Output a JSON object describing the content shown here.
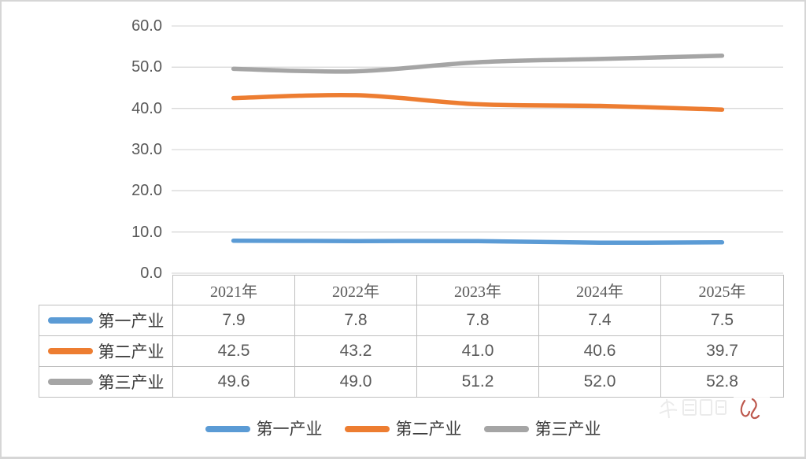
{
  "chart_data": {
    "type": "line",
    "title": "",
    "xlabel": "",
    "ylabel": "",
    "categories": [
      "2021年",
      "2022年",
      "2023年",
      "2024年",
      "2025年"
    ],
    "series": [
      {
        "name": "第一产业",
        "color": "#5B9BD5",
        "values": [
          7.9,
          7.8,
          7.8,
          7.4,
          7.5
        ]
      },
      {
        "name": "第二产业",
        "color": "#ED7D31",
        "values": [
          42.5,
          43.2,
          41.0,
          40.6,
          39.7
        ]
      },
      {
        "name": "第三产业",
        "color": "#A5A5A5",
        "values": [
          49.6,
          49.0,
          51.2,
          52.0,
          52.8
        ]
      }
    ],
    "ylim": [
      0,
      60
    ],
    "yticks": [
      "60.0",
      "50.0",
      "40.0",
      "30.0",
      "20.0",
      "10.0",
      "0.0"
    ],
    "grid": true,
    "gridline_color": "#D9D9D9",
    "smooth_lines": true,
    "legend_position": "bottom"
  },
  "table": {
    "columns": [
      "2021年",
      "2022年",
      "2023年",
      "2024年",
      "2025年"
    ],
    "rows": [
      {
        "label": "第一产业",
        "cells": [
          "7.9",
          "7.8",
          "7.8",
          "7.4",
          "7.5"
        ]
      },
      {
        "label": "第二产业",
        "cells": [
          "42.5",
          "43.2",
          "41.0",
          "40.6",
          "39.7"
        ]
      },
      {
        "label": "第三产业",
        "cells": [
          "49.6",
          "49.0",
          "51.2",
          "52.0",
          "52.8"
        ]
      }
    ]
  },
  "legend": {
    "items": [
      {
        "label": "第一产业",
        "color": "#5B9BD5"
      },
      {
        "label": "第二产业",
        "color": "#ED7D31"
      },
      {
        "label": "第三产业",
        "color": "#A5A5A5"
      }
    ]
  },
  "colors": {
    "text": "#595959",
    "label_text": "#3a3a3a",
    "table_border": "#bfbfbf",
    "page_border": "#d6d6d6",
    "watermark_red": "#b23b2e"
  }
}
